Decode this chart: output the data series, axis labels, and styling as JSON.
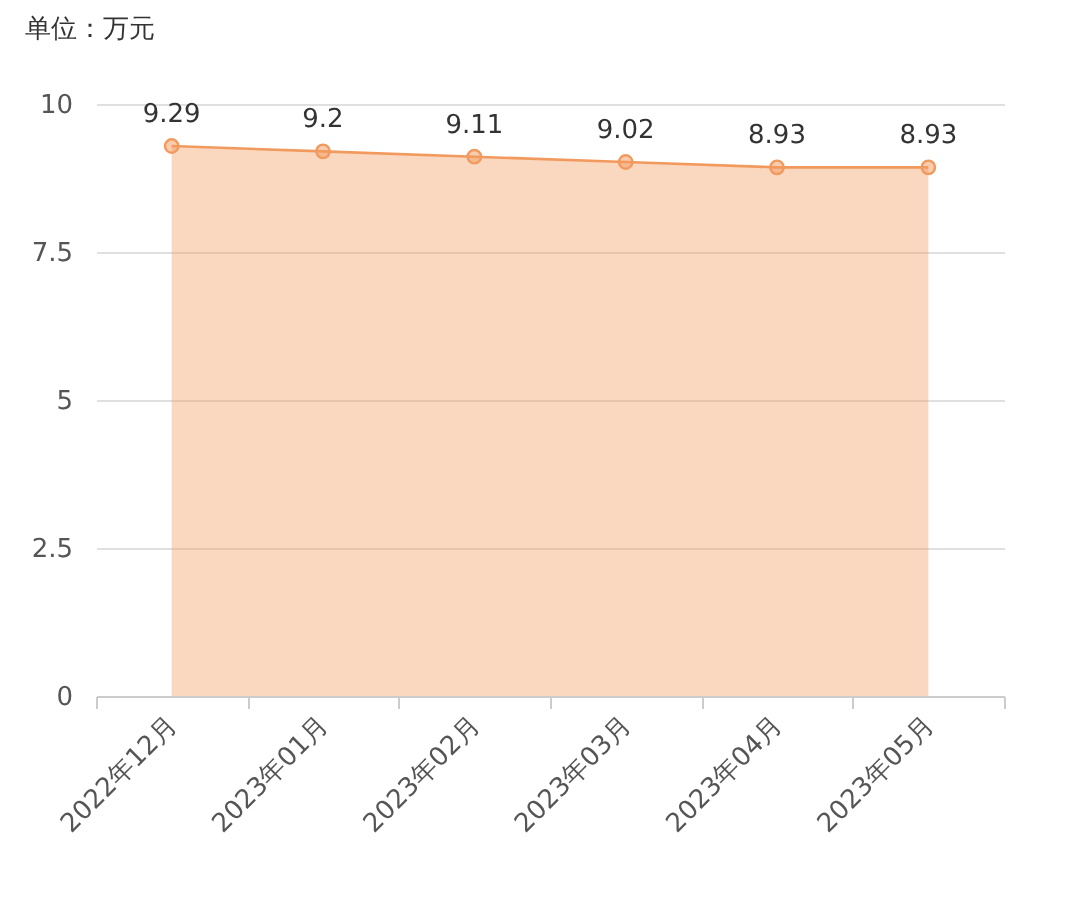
{
  "chart_data": {
    "type": "area",
    "ylabel": "单位：万元",
    "categories": [
      "2022年12月",
      "2023年01月",
      "2023年02月",
      "2023年03月",
      "2023年04月",
      "2023年05月"
    ],
    "series": [
      {
        "color": "#f29a5e",
        "values": [
          9.29,
          9.2,
          9.11,
          9.02,
          8.93,
          8.93
        ]
      }
    ],
    "ylim": [
      0,
      10
    ],
    "yticks": [
      0,
      2.5,
      5,
      7.5,
      10
    ],
    "grid": "y",
    "marker": "circle",
    "data_labels": true
  }
}
